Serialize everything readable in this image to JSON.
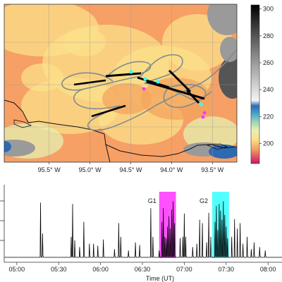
{
  "chart_data": [
    {
      "type": "heatmap",
      "description_free": true,
      "x_ticks": [
        "95.5° W",
        "95.0° W",
        "94.5° W",
        "94.0° W",
        "93.5° W"
      ],
      "x_tick_values": [
        -95.5,
        -95.0,
        -94.5,
        -94.0,
        -93.5
      ],
      "xlim": [
        -96.05,
        -93.2
      ],
      "ylim": [
        0,
        1
      ],
      "grid": true,
      "colorbar": {
        "ticks": [
          "300",
          "280",
          "260",
          "240",
          "220",
          "200"
        ],
        "tick_values": [
          300,
          280,
          260,
          240,
          220,
          200
        ],
        "range": [
          185,
          303
        ],
        "colormap_stops": [
          {
            "value": 185,
            "color": "#c8185a"
          },
          {
            "value": 190,
            "color": "#e0526a"
          },
          {
            "value": 196,
            "color": "#f3a45e"
          },
          {
            "value": 203,
            "color": "#fbe08a"
          },
          {
            "value": 210,
            "color": "#e6f0b0"
          },
          {
            "value": 216,
            "color": "#9ad4b8"
          },
          {
            "value": 222,
            "color": "#4aa3c9"
          },
          {
            "value": 228,
            "color": "#2d6ab4"
          },
          {
            "value": 232,
            "color": "#f4f4f4"
          },
          {
            "value": 260,
            "color": "#9a9a9a"
          },
          {
            "value": 280,
            "color": "#555555"
          },
          {
            "value": 303,
            "color": "#000000"
          }
        ]
      },
      "flight_track_color": "#7f8c8d",
      "highlight_colors": {
        "g1": "#ff33ff",
        "g2": "#33ffff"
      }
    },
    {
      "type": "line",
      "xlabel": "Time (UT)",
      "x_ticks": [
        "05:00",
        "05:30",
        "06:00",
        "06:30",
        "07:00",
        "07:30",
        "08:00"
      ],
      "x_tick_values": [
        300,
        330,
        360,
        390,
        420,
        450,
        480
      ],
      "xlim": [
        291,
        490
      ],
      "ylim": [
        0,
        1
      ],
      "annotations": [
        {
          "label": "G1",
          "x_start": 402,
          "x_end": 414,
          "color": "#ff33ff"
        },
        {
          "label": "G2",
          "x_start": 440,
          "x_end": 452,
          "color": "#33ffff"
        }
      ],
      "peaks": [
        {
          "x": 317,
          "y": 0.8
        },
        {
          "x": 318.5,
          "y": 0.35
        },
        {
          "x": 340,
          "y": 0.78
        },
        {
          "x": 339,
          "y": 0.3
        },
        {
          "x": 341.5,
          "y": 0.25
        },
        {
          "x": 345,
          "y": 0.15
        },
        {
          "x": 348,
          "y": 0.52
        },
        {
          "x": 352,
          "y": 0.2
        },
        {
          "x": 355,
          "y": 0.2
        },
        {
          "x": 358,
          "y": 0.17
        },
        {
          "x": 362,
          "y": 0.26
        },
        {
          "x": 370,
          "y": 0.12
        },
        {
          "x": 373,
          "y": 0.5
        },
        {
          "x": 374.5,
          "y": 0.3
        },
        {
          "x": 380,
          "y": 0.1
        },
        {
          "x": 385,
          "y": 0.22
        },
        {
          "x": 388,
          "y": 0.18
        },
        {
          "x": 396,
          "y": 0.72
        },
        {
          "x": 397.5,
          "y": 0.3
        },
        {
          "x": 402,
          "y": 0.1
        },
        {
          "x": 404,
          "y": 0.52
        },
        {
          "x": 405,
          "y": 0.72
        },
        {
          "x": 406,
          "y": 0.3
        },
        {
          "x": 407,
          "y": 0.28
        },
        {
          "x": 408,
          "y": 0.45
        },
        {
          "x": 409,
          "y": 0.6
        },
        {
          "x": 410,
          "y": 0.42
        },
        {
          "x": 411,
          "y": 0.7
        },
        {
          "x": 412,
          "y": 0.82
        },
        {
          "x": 413,
          "y": 0.5
        },
        {
          "x": 417,
          "y": 0.28
        },
        {
          "x": 419,
          "y": 0.3
        },
        {
          "x": 420,
          "y": 0.64
        },
        {
          "x": 421,
          "y": 0.3
        },
        {
          "x": 426,
          "y": 0.15
        },
        {
          "x": 429,
          "y": 0.2
        },
        {
          "x": 431,
          "y": 0.55
        },
        {
          "x": 433,
          "y": 0.5
        },
        {
          "x": 436,
          "y": 0.22
        },
        {
          "x": 437.5,
          "y": 0.65
        },
        {
          "x": 439,
          "y": 0.3
        },
        {
          "x": 442,
          "y": 0.52
        },
        {
          "x": 443,
          "y": 0.75
        },
        {
          "x": 444,
          "y": 0.4
        },
        {
          "x": 445,
          "y": 0.78
        },
        {
          "x": 446,
          "y": 0.68
        },
        {
          "x": 447,
          "y": 0.55
        },
        {
          "x": 448,
          "y": 0.82
        },
        {
          "x": 449,
          "y": 0.62
        },
        {
          "x": 450,
          "y": 0.45
        },
        {
          "x": 451,
          "y": 0.28
        },
        {
          "x": 454,
          "y": 0.3
        },
        {
          "x": 456,
          "y": 0.56
        },
        {
          "x": 458,
          "y": 0.42
        },
        {
          "x": 460,
          "y": 0.5
        },
        {
          "x": 462,
          "y": 0.2
        },
        {
          "x": 465,
          "y": 0.3
        },
        {
          "x": 468,
          "y": 0.12
        },
        {
          "x": 470,
          "y": 0.22
        },
        {
          "x": 474,
          "y": 0.15
        },
        {
          "x": 478,
          "y": 0.1
        }
      ]
    }
  ],
  "labels": {
    "g1": "G1",
    "g2": "G2",
    "xlabel": "Time (UT)"
  }
}
